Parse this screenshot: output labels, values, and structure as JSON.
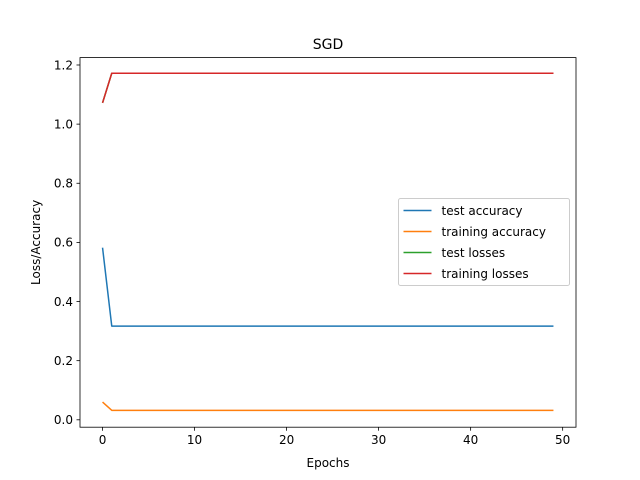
{
  "chart_data": {
    "type": "line",
    "title": "SGD",
    "xlabel": "Epochs",
    "ylabel": "Loss/Accuracy",
    "xlim": [
      -2.45,
      51.45
    ],
    "ylim": [
      -0.025,
      1.225
    ],
    "x_ticks": [
      0,
      10,
      20,
      30,
      40,
      50
    ],
    "y_ticks": [
      0.0,
      0.2,
      0.4,
      0.6,
      0.8,
      1.0,
      1.2
    ],
    "grid": false,
    "legend_position": "center-right",
    "series": [
      {
        "name": "test accuracy",
        "color": "#1f77b4",
        "x": [
          0,
          1,
          49
        ],
        "y": [
          0.582,
          0.317,
          0.317
        ]
      },
      {
        "name": "training accuracy",
        "color": "#ff7f0e",
        "x": [
          0,
          1,
          49
        ],
        "y": [
          0.06,
          0.032,
          0.032
        ]
      },
      {
        "name": "test losses",
        "color": "#2ca02c",
        "x": [
          0,
          1,
          49
        ],
        "y": [
          1.072,
          1.172,
          1.172
        ]
      },
      {
        "name": "training losses",
        "color": "#d62728",
        "x": [
          0,
          1,
          49
        ],
        "y": [
          1.072,
          1.172,
          1.172
        ]
      }
    ]
  }
}
